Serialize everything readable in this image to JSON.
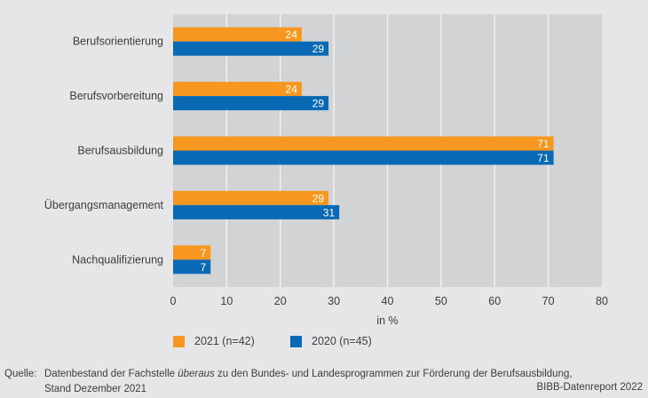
{
  "chart_data": {
    "type": "bar",
    "orientation": "horizontal",
    "title": "",
    "categories": [
      "Berufsorientierung",
      "Berufsvorbereitung",
      "Berufsausbildung",
      "Übergangsmanagement",
      "Nachqualifizierung"
    ],
    "series": [
      {
        "name": "2021 (n=42)",
        "color": "#f7971f",
        "values": [
          24,
          24,
          71,
          29,
          7
        ]
      },
      {
        "name": "2020 (n=45)",
        "color": "#0a69b4",
        "values": [
          29,
          29,
          71,
          31,
          7
        ]
      }
    ],
    "xlabel": "in %",
    "ylabel": "",
    "xlim": [
      0,
      80
    ],
    "xticks": [
      0,
      10,
      20,
      30,
      40,
      50,
      60,
      70,
      80
    ],
    "grid": true,
    "legend_position": "bottom-left",
    "data_labels": true
  },
  "colors": {
    "background": "#e6e6e8",
    "plot_background": "#d2d3d5",
    "gridline": "#f2f2f2"
  },
  "footer": {
    "source_label": "Quelle:",
    "source_text_before": "Datenbestand der Fachstelle",
    "source_emphasis": "überaus",
    "source_text_after": "zu den Bundes- und Landesprogrammen zur Förderung der Berufsausbildung,",
    "source_line2": "Stand Dezember 2021",
    "credit": "BIBB-Datenreport 2022"
  }
}
